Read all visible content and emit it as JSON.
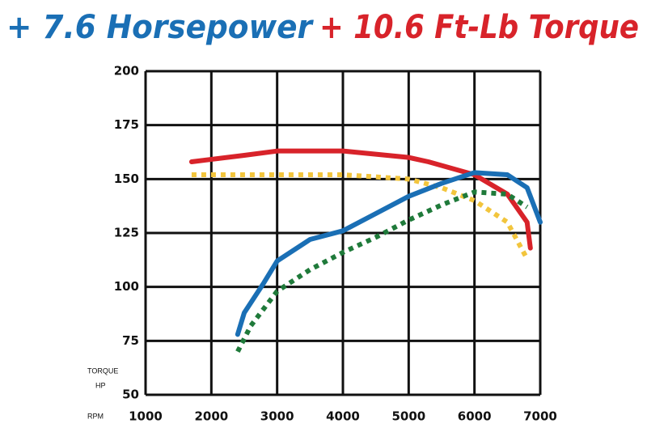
{
  "chart_data": {
    "type": "line",
    "title_parts": [
      "+ 7.6 Horsepower",
      "+ 10.6 Ft-Lb Torque"
    ],
    "title_colors": [
      "#1a6fb5",
      "#d8232a"
    ],
    "y_axis_labels": [
      "TORQUE",
      "HP"
    ],
    "x_axis_label": "RPM",
    "xlim": [
      1000,
      7000
    ],
    "xticks": [
      1000,
      2000,
      3000,
      4000,
      5000,
      6000,
      7000
    ],
    "ylim": [
      50,
      200
    ],
    "yticks": [
      50,
      75,
      100,
      125,
      150,
      175,
      200
    ],
    "grid": true,
    "series": [
      {
        "color": "#d8232a",
        "dashed": false,
        "x": [
          1700,
          2500,
          3000,
          4000,
          5000,
          5300,
          6000,
          6500,
          6800,
          6850
        ],
        "values": [
          158,
          161,
          163,
          163,
          160,
          158,
          152,
          143,
          130,
          118
        ]
      },
      {
        "color": "#f2c53d",
        "dashed": true,
        "x": [
          1700,
          3000,
          4000,
          5000,
          5500,
          6000,
          6500,
          6800
        ],
        "values": [
          152,
          152,
          152,
          150,
          146,
          140,
          130,
          113
        ]
      },
      {
        "color": "#1a6fb5",
        "dashed": false,
        "x": [
          2400,
          2500,
          2800,
          3000,
          3500,
          4000,
          4500,
          5000,
          5500,
          6000,
          6500,
          6800,
          7000
        ],
        "values": [
          78,
          88,
          102,
          112,
          122,
          126,
          134,
          142,
          148,
          153,
          152,
          146,
          130
        ]
      },
      {
        "color": "#1f7a3a",
        "dashed": true,
        "x": [
          2400,
          2600,
          3000,
          3500,
          4000,
          4500,
          5000,
          5500,
          6000,
          6500,
          6800
        ],
        "values": [
          70,
          82,
          98,
          108,
          116,
          123,
          131,
          138,
          144,
          143,
          137
        ]
      }
    ]
  }
}
